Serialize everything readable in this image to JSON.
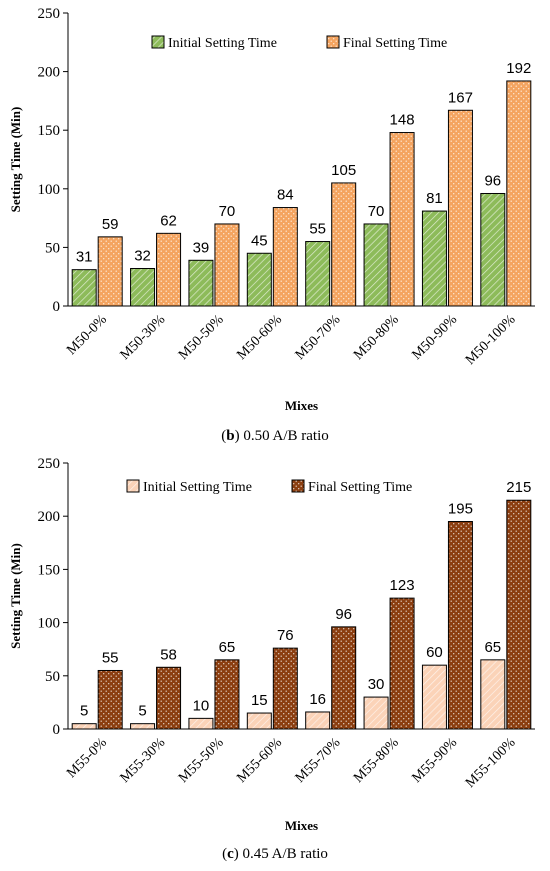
{
  "chart_data": [
    {
      "type": "bar",
      "caption_letter": "b",
      "caption_text": " 0.50 A/B ratio",
      "xlabel": "Mixes",
      "ylabel": "Setting Time (Min)",
      "ylim": [
        0,
        250
      ],
      "yticks": [
        0,
        50,
        100,
        150,
        200,
        250
      ],
      "categories": [
        "M50-0%",
        "M50-30%",
        "M50-50%",
        "M50-60%",
        "M50-70%",
        "M50-80%",
        "M50-90%",
        "M50-100%"
      ],
      "legend_position": "top",
      "series": [
        {
          "name": "Initial Setting Time",
          "values": [
            31,
            32,
            39,
            45,
            55,
            70,
            81,
            96
          ],
          "color": "#8dbb5a",
          "pattern": "diagonal-hatch"
        },
        {
          "name": "Final Setting Time",
          "values": [
            59,
            62,
            70,
            84,
            105,
            148,
            167,
            192
          ],
          "color": "#f4a460",
          "pattern": "dots"
        }
      ]
    },
    {
      "type": "bar",
      "caption_letter": "c",
      "caption_text": " 0.45 A/B ratio",
      "xlabel": "Mixes",
      "ylabel": "Setting Time (Min)",
      "ylim": [
        0,
        250
      ],
      "yticks": [
        0,
        50,
        100,
        150,
        200,
        250
      ],
      "categories": [
        "M55-0%",
        "M55-30%",
        "M55-50%",
        "M55-60%",
        "M55-70%",
        "M55-80%",
        "M55-90%",
        "M55-100%"
      ],
      "legend_position": "top",
      "series": [
        {
          "name": "Initial Setting Time",
          "values": [
            5,
            5,
            10,
            15,
            16,
            30,
            60,
            65
          ],
          "color": "#fbd3b8",
          "pattern": "diagonal-hatch"
        },
        {
          "name": "Final Setting Time",
          "values": [
            55,
            58,
            65,
            76,
            96,
            123,
            195,
            215
          ],
          "color": "#8b3e10",
          "pattern": "dots"
        }
      ]
    }
  ]
}
